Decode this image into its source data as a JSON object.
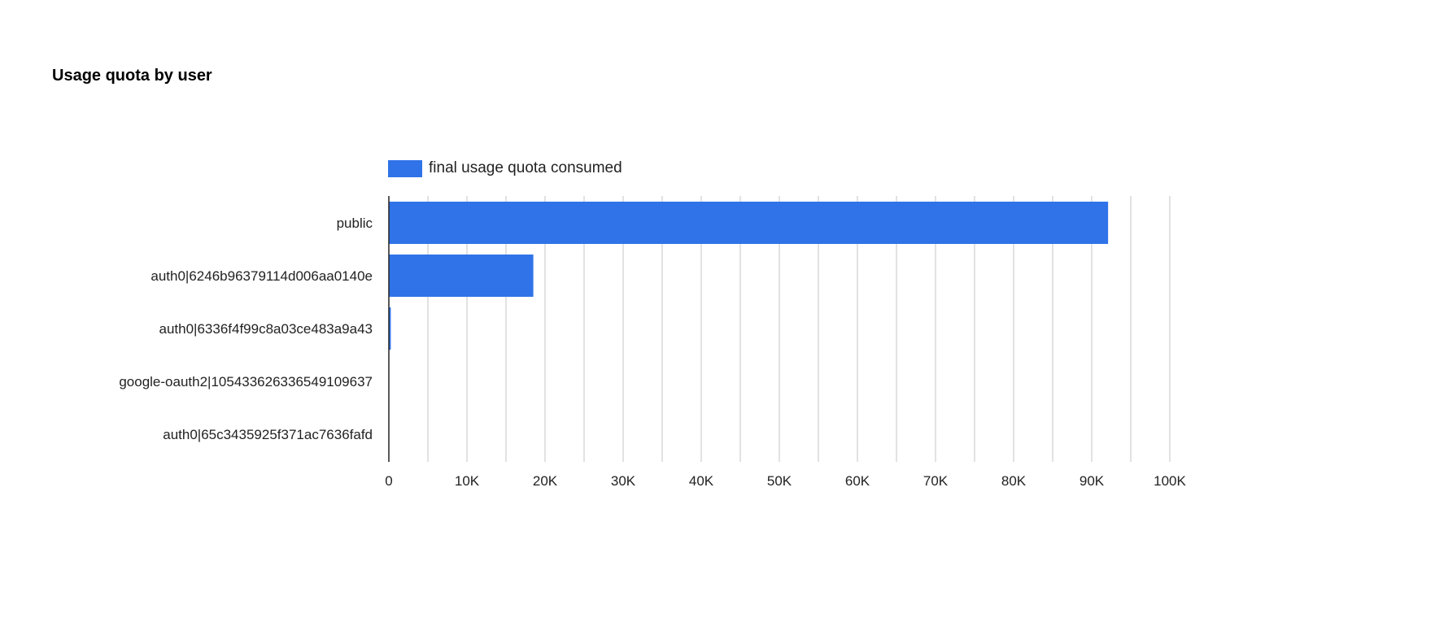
{
  "chart_data": {
    "type": "bar",
    "orientation": "horizontal",
    "title": "Usage quota by user",
    "categories": [
      "public",
      "auth0|6246b96379114d006aa0140e",
      "auth0|6336f4f99c8a03ce483a9a43",
      "google-oauth2|105433626336549109637",
      "auth0|65c3435925f371ac7636fafd"
    ],
    "series": [
      {
        "name": "final usage quota consumed",
        "values": [
          92100,
          18500,
          250,
          20,
          10
        ],
        "color": "#3073e8"
      }
    ],
    "xlim": [
      0,
      100000
    ],
    "xticks": [
      0,
      10000,
      20000,
      30000,
      40000,
      50000,
      60000,
      70000,
      80000,
      90000,
      100000
    ],
    "xtick_labels": [
      "0",
      "10K",
      "20K",
      "30K",
      "40K",
      "50K",
      "60K",
      "70K",
      "80K",
      "90K",
      "100K"
    ],
    "grid": true,
    "legend_position": "top-left"
  }
}
